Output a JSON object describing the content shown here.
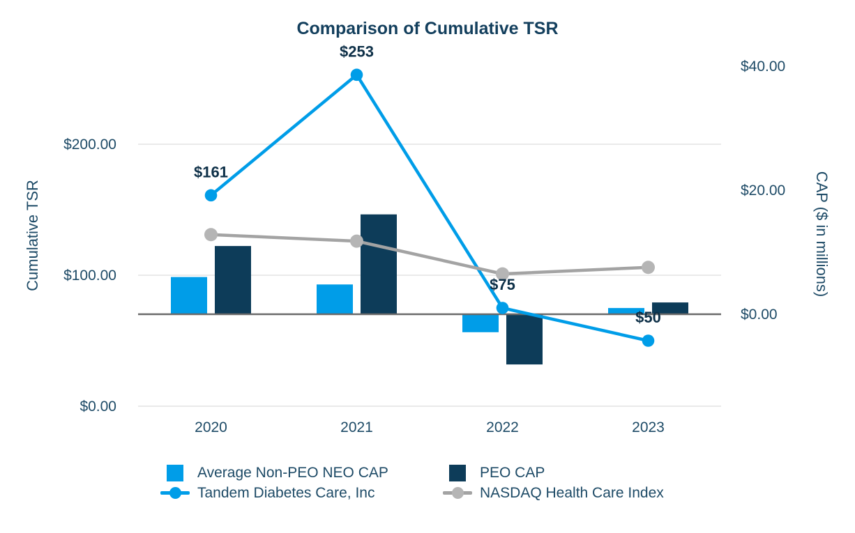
{
  "chart_data": {
    "type": "combo-bar-line",
    "title": "Comparison of Cumulative TSR",
    "categories": [
      "2020",
      "2021",
      "2022",
      "2023"
    ],
    "left_axis": {
      "title": "Cumulative TSR",
      "tick_labels": [
        "$0.00",
        "$100.00",
        "$200.00"
      ],
      "tick_values": [
        0,
        100,
        200
      ],
      "range": [
        0,
        310
      ],
      "gridlines": true
    },
    "right_axis": {
      "title": "CAP ($ in millions)",
      "tick_labels": [
        "$0.00",
        "$20.00",
        "$40.00"
      ],
      "tick_values": [
        0,
        20,
        40
      ],
      "range": [
        -12,
        40
      ],
      "gridlines": false
    },
    "bar_series": [
      {
        "name": "Average Non-PEO NEO CAP",
        "axis": "right",
        "color": "#009de8",
        "values": [
          6.0,
          4.8,
          -2.9,
          1.0
        ]
      },
      {
        "name": "PEO CAP",
        "axis": "right",
        "color": "#0d3c59",
        "values": [
          11.0,
          16.1,
          -8.1,
          1.9
        ]
      }
    ],
    "line_series": [
      {
        "name": "Tandem Diabetes Care, Inc",
        "axis": "left",
        "color": "#009de8",
        "marker_color": "#009de8",
        "values": [
          161,
          253,
          75,
          50
        ],
        "point_labels": [
          "$161",
          "$253",
          "$75",
          "$50"
        ]
      },
      {
        "name": "NASDAQ Health Care Index",
        "axis": "left",
        "color": "#a3a3a3",
        "marker_color": "#b5b5b5",
        "values": [
          131,
          126,
          101,
          106
        ],
        "point_labels": [
          "",
          "",
          "",
          ""
        ]
      }
    ],
    "legend_position": "bottom"
  },
  "colors": {
    "background": "#ffffff",
    "title_text": "#133f5d",
    "axis_text": "#1d4a66",
    "point_label_text": "#0e3048",
    "gridline": "#e4e4e4",
    "zero_line": "#696969"
  }
}
